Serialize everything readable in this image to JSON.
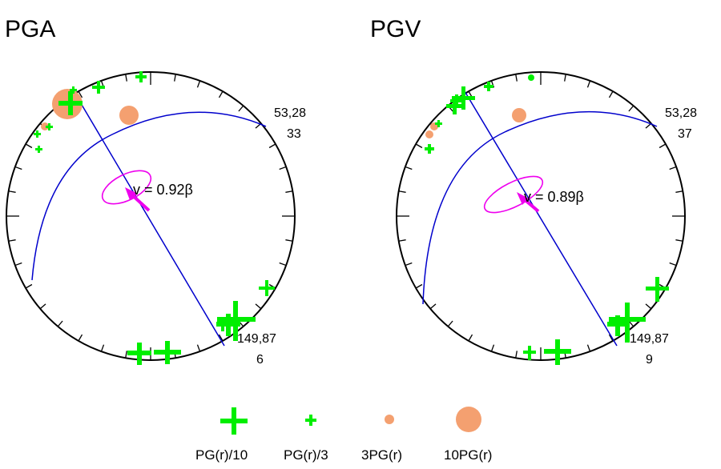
{
  "colors": {
    "plus": "#00ee00",
    "circle": "#f4a070",
    "plane": "#0000cc",
    "ellipse": "#ee00ee",
    "arrow": "#ee00ee",
    "outline": "#000000"
  },
  "panels": [
    {
      "title": "PGA",
      "strike_dip_top": "53,28",
      "rake_top": "33",
      "strike_dip_bottom": "149,87",
      "rake_bottom": "6",
      "velocity_label": "v = 0.92β"
    },
    {
      "title": "PGV",
      "strike_dip_top": "53,28",
      "rake_top": "37",
      "strike_dip_bottom": "149,87",
      "rake_bottom": "9",
      "velocity_label": "v = 0.89β"
    }
  ],
  "legend": [
    {
      "label": "PG(r)/10",
      "symbol": "plus-large"
    },
    {
      "label": "PG(r)/3",
      "symbol": "plus-small"
    },
    {
      "label": "3PG(r)",
      "symbol": "circle-small"
    },
    {
      "label": "10PG(r)",
      "symbol": "circle-large"
    }
  ]
}
